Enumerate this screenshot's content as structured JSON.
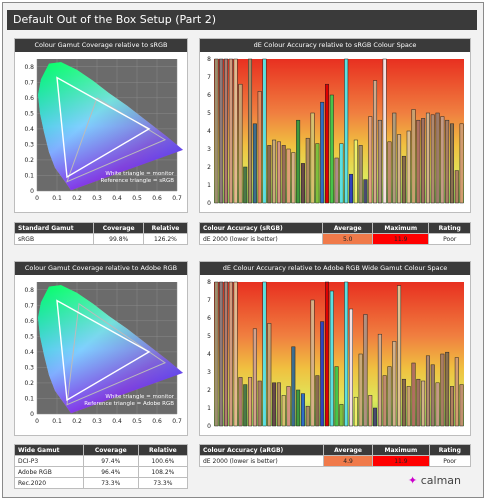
{
  "header": {
    "title": "Default Out of the Box Setup (Part 2)"
  },
  "gamut_srgb": {
    "title": "Colour Gamut Coverage relative to sRGB",
    "legend_line1": "White triangle = monitor",
    "legend_line2": "Reference triangle = sRGB",
    "xticks": [
      "0",
      "0.1",
      "0.2",
      "0.3",
      "0.4",
      "0.5",
      "0.6",
      "0.7"
    ],
    "yticks": [
      "0.8",
      "0.7",
      "0.6",
      "0.5",
      "0.4",
      "0.3",
      "0.2",
      "0.1",
      "0"
    ]
  },
  "accuracy_srgb": {
    "title": "dE Colour Accuracy relative to sRGB Colour Space",
    "yticks": [
      "8",
      "7",
      "6",
      "5",
      "4",
      "3",
      "2",
      "1",
      "0"
    ]
  },
  "table_srgb": {
    "headers": [
      "Standard Gamut",
      "Coverage",
      "Relative"
    ],
    "rows": [
      {
        "name": "sRGB",
        "coverage": "99.8%",
        "relative": "126.2%"
      }
    ]
  },
  "summary_srgb": {
    "headers": [
      "Colour Accuracy (sRGB)",
      "Average",
      "Maximum",
      "Rating"
    ],
    "label": "dE 2000 (lower is better)",
    "average": "5.0",
    "maximum": "11.9",
    "rating": "Poor"
  },
  "gamut_argb": {
    "title": "Colour Gamut Coverage relative to Adobe RGB",
    "legend_line1": "White triangle = monitor",
    "legend_line2": "Reference triangle = Adobe RGB",
    "xticks": [
      "0",
      "0.1",
      "0.2",
      "0.3",
      "0.4",
      "0.5",
      "0.6",
      "0.7"
    ],
    "yticks": [
      "0.8",
      "0.7",
      "0.6",
      "0.5",
      "0.4",
      "0.3",
      "0.2",
      "0.1",
      "0"
    ]
  },
  "accuracy_argb": {
    "title": "dE Colour Accuracy relative to Adobe RGB Wide Gamut Colour Space",
    "yticks": [
      "8",
      "7",
      "6",
      "5",
      "4",
      "3",
      "2",
      "1",
      "0"
    ]
  },
  "table_argb": {
    "headers": [
      "Wide Gamut",
      "Coverage",
      "Relative"
    ],
    "rows": [
      {
        "name": "DCI-P3",
        "coverage": "97.4%",
        "relative": "100.6%"
      },
      {
        "name": "Adobe RGB",
        "coverage": "96.4%",
        "relative": "108.2%"
      },
      {
        "name": "Rec.2020",
        "coverage": "73.3%",
        "relative": "73.3%"
      }
    ]
  },
  "summary_argb": {
    "headers": [
      "Colour Accuracy (aRGB)",
      "Average",
      "Maximum",
      "Rating"
    ],
    "label": "dE 2000 (lower is better)",
    "average": "4.9",
    "maximum": "11.9",
    "rating": "Poor"
  },
  "logo": {
    "text": "calman"
  },
  "chart_data": [
    {
      "type": "bar",
      "title": "dE Colour Accuracy relative to sRGB Colour Space",
      "ylim": [
        0,
        8
      ],
      "values": [
        8,
        8,
        8,
        8,
        8,
        6.6,
        2,
        8,
        4.4,
        6.2,
        8,
        3.2,
        3.5,
        3.4,
        3.2,
        3,
        2.8,
        4.6,
        2.2,
        3.6,
        5,
        3.3,
        5.6,
        6.6,
        6,
        2.5,
        3.3,
        8,
        1.6,
        3.5,
        3.2,
        1.3,
        4.8,
        6.8,
        4.6,
        8,
        3.4,
        5,
        3.8,
        2.6,
        4,
        5.2,
        4.6,
        4.7,
        5,
        4.9,
        5,
        4.8,
        4.6,
        4.4,
        1.8,
        4.4
      ],
      "colors": [
        "#9e8f6e",
        "#8d7a7a",
        "#b07b6f",
        "#d19b7e",
        "#e3b98e",
        "#c8a273",
        "#4a7a46",
        "#a88a63",
        "#3b6d8e",
        "#e38a5f",
        "#5ce0e0",
        "#8a6a50",
        "#c9a978",
        "#d49380",
        "#9a6d58",
        "#e0a078",
        "#d7b087",
        "#3e9a3e",
        "#6a4a4a",
        "#b08a5f",
        "#d6c06e",
        "#7fbf3b",
        "#2f6ec6",
        "#e00000",
        "#49c449",
        "#b08a8a",
        "#5ce0e0",
        "#5ce0e0",
        "#2f44c0",
        "#f0f06a",
        "#a08b6e",
        "#4a4a70",
        "#e0a080",
        "#d2a88a",
        "#b09080",
        "#f5e0e0",
        "#c08a6e",
        "#b09a7a",
        "#d2b08a",
        "#8a6a4a",
        "#e0c090",
        "#c8a070",
        "#b07060",
        "#a07060",
        "#d2b08a",
        "#b08870",
        "#9c7a6a",
        "#c49a86",
        "#a87c64",
        "#8a7050",
        "#b08060",
        "#d29c70"
      ]
    },
    {
      "type": "bar",
      "title": "dE Colour Accuracy relative to Adobe RGB Wide Gamut Colour Space",
      "ylim": [
        0,
        8
      ],
      "values": [
        8,
        8,
        8,
        8,
        8,
        2.7,
        2.3,
        2.7,
        5.4,
        2.5,
        8,
        5.7,
        2.4,
        2.4,
        1.7,
        2.2,
        4.4,
        2,
        1.8,
        1.1,
        7,
        2.8,
        5.8,
        8,
        7.5,
        3.3,
        1.2,
        8,
        6.5,
        1.6,
        4,
        6.2,
        1.7,
        1,
        5.1,
        2.8,
        3.3,
        4.7,
        7.8,
        2.6,
        2.2,
        3.5,
        2.6,
        2.5,
        3.9,
        3.4,
        2.4,
        4,
        4.1,
        2.2,
        3.8,
        2.3
      ],
      "colors": [
        "#9e8f6e",
        "#8d7a7a",
        "#b07b6f",
        "#d19b7e",
        "#e3b98e",
        "#b07b6f",
        "#4a7a46",
        "#e0a078",
        "#d2a08a",
        "#a87c64",
        "#5ce0e0",
        "#c8a273",
        "#6a4a4a",
        "#b08a5f",
        "#d6c06e",
        "#d49380",
        "#3b6d8e",
        "#3e9a3e",
        "#2f6ec6",
        "#a88a63",
        "#d7b087",
        "#8a6a50",
        "#2f44c0",
        "#e00000",
        "#5ce0e0",
        "#49c449",
        "#7fbf3b",
        "#5ce0e0",
        "#f5e0e0",
        "#f0f06a",
        "#c9a978",
        "#b09080",
        "#e0a080",
        "#4a4a70",
        "#d2a88a",
        "#c08a6e",
        "#b09a7a",
        "#d2b08a",
        "#e0c090",
        "#8a6a4a",
        "#c8a070",
        "#b07060",
        "#a07060",
        "#d2b08a",
        "#b08870",
        "#9c7a6a",
        "#c49a86",
        "#a87c64",
        "#8a7050",
        "#b08060",
        "#d29c70",
        "#c09070"
      ]
    }
  ]
}
